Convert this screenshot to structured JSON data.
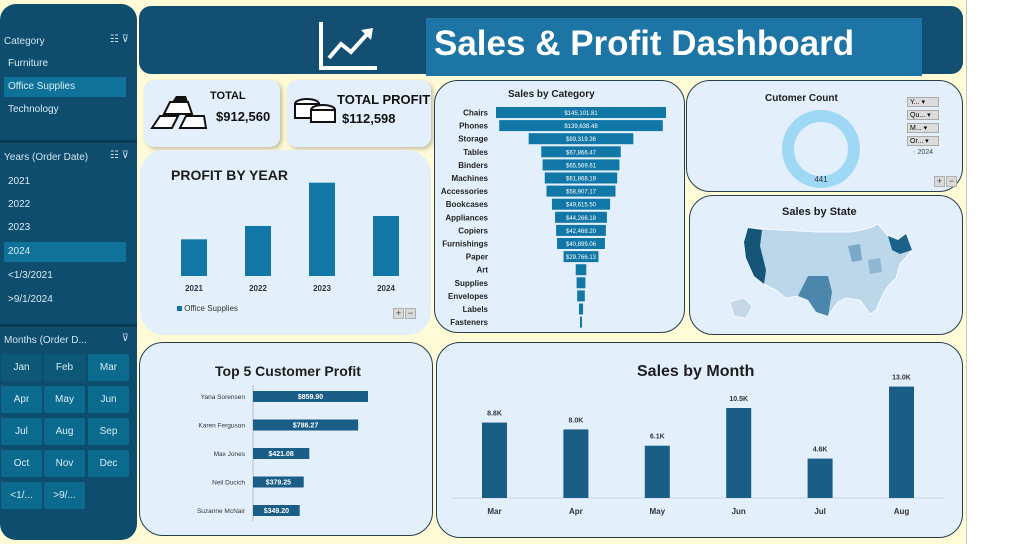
{
  "title": "Sales & Profit Dashboard",
  "slicers": {
    "category": {
      "header": "Category",
      "items": [
        "Furniture",
        "Office Supplies",
        "Technology"
      ],
      "selected": "Office Supplies"
    },
    "years": {
      "header": "Years (Order Date)",
      "items": [
        "2021",
        "2022",
        "2023",
        "2024",
        "<1/3/2021",
        ">9/1/2024"
      ],
      "selected": "2024"
    },
    "months": {
      "header": "Months (Order D...",
      "items": [
        "Jan",
        "Feb",
        "Mar",
        "Apr",
        "May",
        "Jun",
        "Jul",
        "Aug",
        "Sep",
        "Oct",
        "Nov",
        "Dec",
        "<1/...",
        ">9/..."
      ]
    }
  },
  "kpis": {
    "total": {
      "label": "TOTAL",
      "value": "$912,560"
    },
    "total_profit": {
      "label": "TOTAL PROFIT",
      "value": "$112,598"
    }
  },
  "profit_by_year": {
    "title": "PROFIT BY YEAR",
    "legend": "Office Supplies"
  },
  "sales_by_category": {
    "title": "Sales by Category"
  },
  "customer_count": {
    "title": "Cutomer  Count",
    "value": "441",
    "legend": "2024",
    "filters": [
      "Y...",
      "Qu...",
      "M...",
      "Or..."
    ]
  },
  "sales_by_state": {
    "title": "Sales by State"
  },
  "top5": {
    "title": "Top 5 Customer Profit"
  },
  "sales_by_month": {
    "title": "Sales by Month"
  },
  "colors": {
    "bar": "#1177a6",
    "dark_bar": "#1a5d86",
    "card_bg": "#e3f0fc",
    "slicer_bg": "#0e4d6e",
    "title_bg": "#134f73",
    "donut": "#9fd8f5"
  },
  "chart_data": [
    {
      "type": "bar",
      "name": "profit_by_year",
      "title": "PROFIT BY YEAR",
      "categories": [
        "2021",
        "2022",
        "2023",
        "2024"
      ],
      "series": [
        {
          "name": "Office Supplies",
          "values": [
            22000,
            30000,
            56000,
            36000
          ]
        }
      ],
      "ylim": [
        0,
        60000
      ],
      "legend": "bottom-left",
      "grid": false
    },
    {
      "type": "bar",
      "name": "sales_by_category",
      "title": "Sales by Category",
      "orientation": "horizontal-funnel",
      "categories": [
        "Chairs",
        "Phones",
        "Storage",
        "Tables",
        "Binders",
        "Machines",
        "Accessories",
        "Bookcases",
        "Appliances",
        "Copiers",
        "Furnishings",
        "Paper",
        "Art",
        "Supplies",
        "Envelopes",
        "Labels",
        "Fasteners"
      ],
      "values": [
        145101.81,
        139638.48,
        89319.36,
        67866.47,
        65569.61,
        61868.19,
        58907.17,
        49615.5,
        44266.18,
        42468.2,
        40899.06,
        29766.13,
        9000,
        7500,
        6500,
        3500,
        1000
      ],
      "labels": [
        "$145,101.81",
        "$139,638.48",
        "$89,319.36",
        "$67,866.47",
        "$65,569.61",
        "$61,868.19",
        "$58,907.17",
        "$49,615.50",
        "$44,266.18",
        "$42,468.20",
        "$40,899.06",
        "$29,766.13",
        "",
        "",
        "",
        "",
        ""
      ]
    },
    {
      "type": "pie",
      "name": "customer_count",
      "title": "Cutomer  Count",
      "categories": [
        "2024"
      ],
      "values": [
        441
      ]
    },
    {
      "type": "bar",
      "name": "top5_customer_profit",
      "title": "Top 5 Customer Profit",
      "orientation": "horizontal",
      "categories": [
        "Yana Sorensen",
        "Karen Ferguson",
        "Max Jones",
        "Neil Ducich",
        "Suzanne McNair"
      ],
      "values": [
        859.9,
        786.27,
        421.08,
        379.25,
        349.2
      ],
      "labels": [
        "$859.90",
        "$786.27",
        "$421.08",
        "$379.25",
        "$349.20"
      ]
    },
    {
      "type": "bar",
      "name": "sales_by_month",
      "title": "Sales by Month",
      "categories": [
        "Mar",
        "Apr",
        "May",
        "Jun",
        "Jul",
        "Aug"
      ],
      "values": [
        8800,
        8000,
        6100,
        10500,
        4600,
        13000
      ],
      "labels": [
        "8.8K",
        "8.0K",
        "6.1K",
        "10.5K",
        "4.6K",
        "13.0K"
      ],
      "ylim": [
        0,
        14000
      ]
    }
  ]
}
